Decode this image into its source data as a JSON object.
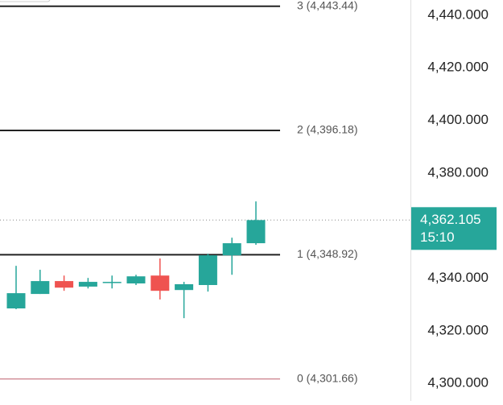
{
  "chart_data": {
    "type": "candlestick",
    "open": [
      4328.5,
      4334.0,
      4338.9,
      4336.8,
      4338.6,
      4338.0,
      4341.0,
      4335.5,
      4337.4,
      4348.7,
      4353.3
    ],
    "high": [
      4344.7,
      4343.2,
      4341.0,
      4340.1,
      4341.0,
      4341.3,
      4347.5,
      4338.6,
      4349.3,
      4355.4,
      4369.2
    ],
    "low": [
      4328.2,
      4334.0,
      4335.2,
      4336.1,
      4336.1,
      4337.4,
      4331.9,
      4324.8,
      4334.9,
      4341.3,
      4352.7
    ],
    "close": [
      4334.3,
      4338.9,
      4336.4,
      4338.6,
      4338.6,
      4340.7,
      4335.2,
      4337.7,
      4348.7,
      4353.3,
      4362.105
    ],
    "up_color": "#26a69a",
    "down_color": "#ef5350",
    "ylim": [
      4293.3,
      4445.8
    ],
    "yticks": [
      {
        "value": 4300,
        "label": "4,300.000"
      },
      {
        "value": 4320,
        "label": "4,320.000"
      },
      {
        "value": 4340,
        "label": "4,340.000"
      },
      {
        "value": 4380,
        "label": "4,380.000"
      },
      {
        "value": 4400,
        "label": "4,400.000"
      },
      {
        "value": 4420,
        "label": "4,420.000"
      },
      {
        "value": 4440,
        "label": "4,440.000"
      }
    ],
    "levels": [
      {
        "value": 4301.66,
        "label": "0 (4,301.66)",
        "color": "#c4707c"
      },
      {
        "value": 4348.92,
        "label": "1 (4,348.92)",
        "color": "#222222"
      },
      {
        "value": 4396.18,
        "label": "2 (4,396.18)",
        "color": "#222222"
      },
      {
        "value": 4443.44,
        "label": "3 (4,443.44)",
        "color": "#222222"
      }
    ],
    "last_price": {
      "value": 4362.105,
      "label": "4,362.105"
    },
    "countdown": "15:10",
    "badge_color": "#26a69a"
  }
}
